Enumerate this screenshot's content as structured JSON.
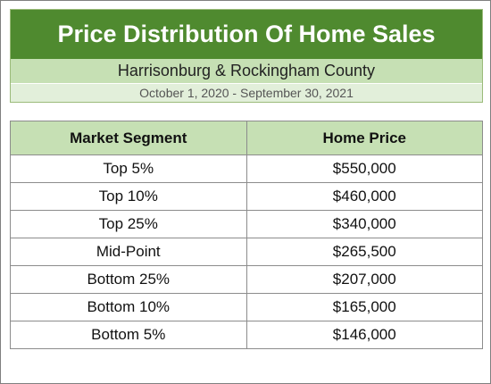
{
  "header": {
    "title": "Price Distribution Of Home Sales",
    "subtitle": "Harrisonburg & Rockingham County",
    "date_range": "October 1, 2020 - September 30, 2021"
  },
  "colors": {
    "title_bg": "#4f8a2f",
    "subtitle_bg": "#c6e0b4",
    "date_bg": "#e2efda",
    "table_header_bg": "#c6e0b4"
  },
  "chart_data": {
    "type": "table",
    "title": "Price Distribution Of Home Sales",
    "columns": [
      "Market Segment",
      "Home Price"
    ],
    "rows": [
      [
        "Top 5%",
        "$550,000"
      ],
      [
        "Top 10%",
        "$460,000"
      ],
      [
        "Top 25%",
        "$340,000"
      ],
      [
        "Mid-Point",
        "$265,500"
      ],
      [
        "Bottom 25%",
        "$207,000"
      ],
      [
        "Bottom 10%",
        "$165,000"
      ],
      [
        "Bottom 5%",
        "$146,000"
      ]
    ]
  }
}
